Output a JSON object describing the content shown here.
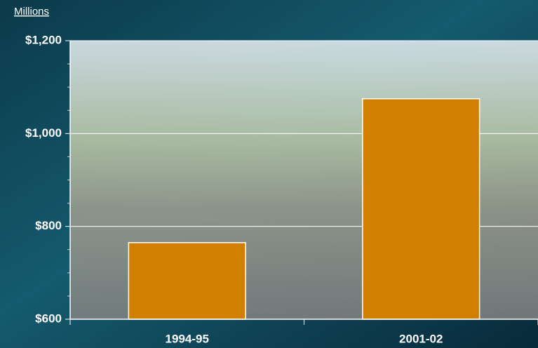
{
  "chart_data": {
    "type": "bar",
    "y_axis_label": "Millions",
    "categories": [
      "1994-95",
      "2001-02"
    ],
    "values": [
      765,
      1075
    ],
    "color": "#d07f00",
    "ylim": [
      600,
      1200
    ],
    "yticks": [
      {
        "value": 600,
        "label": "$600"
      },
      {
        "value": 800,
        "label": "$800"
      },
      {
        "value": 1000,
        "label": "$1,000"
      },
      {
        "value": 1200,
        "label": "$1,200"
      }
    ],
    "minor_yticks": [
      650,
      700,
      750,
      850,
      900,
      950,
      1050,
      1100,
      1150
    ],
    "grid": true
  }
}
